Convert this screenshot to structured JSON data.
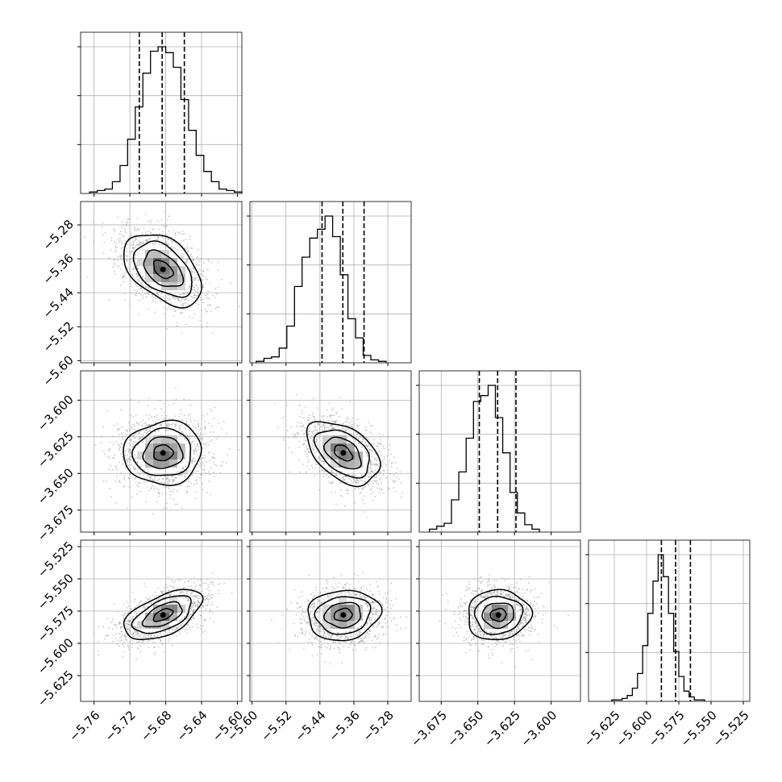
{
  "chart_data": {
    "type": "corner",
    "grid": true,
    "quantile_lines": "dashed",
    "params": [
      {
        "index": 0,
        "range": [
          -5.775,
          -5.595
        ],
        "ticks": [
          -5.76,
          -5.72,
          -5.68,
          -5.64,
          -5.6
        ],
        "tick_labels": [
          "−5.76",
          "−5.72",
          "−5.68",
          "−5.64",
          "−5.60"
        ],
        "quantiles": [
          -5.7095,
          -5.684,
          -5.6592
        ],
        "hist_start": -5.765,
        "hist_bin_width": 0.0085,
        "hist_counts": [
          1,
          2,
          3,
          8,
          19,
          37,
          59,
          82,
          97,
          100,
          96,
          86,
          64,
          43,
          26,
          15,
          8,
          3,
          2,
          1
        ],
        "center": [
          -5.683,
          -5.385,
          -3.636,
          -5.578
        ]
      },
      {
        "index": 1,
        "range": [
          -5.605,
          -5.225
        ],
        "ticks": [
          -5.6,
          -5.52,
          -5.44,
          -5.36,
          -5.28
        ],
        "tick_labels": [
          "−5.60",
          "−5.52",
          "−5.44",
          "−5.36",
          "−5.28"
        ],
        "quantiles": [
          -5.435,
          -5.386,
          -5.336
        ],
        "hist_start": -5.59,
        "hist_bin_width": 0.018,
        "hist_counts": [
          1,
          3,
          4,
          10,
          25,
          52,
          72,
          85,
          91,
          100,
          86,
          60,
          30,
          17,
          5,
          2,
          1
        ]
      },
      {
        "index": 2,
        "range": [
          -3.69,
          -3.58
        ],
        "ticks": [
          -3.675,
          -3.65,
          -3.625,
          -3.6
        ],
        "tick_labels": [
          "−3.675",
          "−3.650",
          "−3.625",
          "−3.600"
        ],
        "quantiles": [
          -3.649,
          -3.6365,
          -3.624
        ],
        "hist_start": -3.683,
        "hist_bin_width": 0.005,
        "hist_counts": [
          2,
          4,
          6,
          22,
          41,
          64,
          89,
          93,
          100,
          78,
          54,
          27,
          13,
          5,
          2
        ]
      },
      {
        "index": 3,
        "range": [
          -5.645,
          -5.52
        ],
        "ticks": [
          -5.625,
          -5.6,
          -5.575,
          -5.55,
          -5.525
        ],
        "tick_labels": [
          "−5.625",
          "−5.600",
          "−5.575",
          "−5.550",
          "−5.525"
        ],
        "quantiles": [
          -5.5885,
          -5.5775,
          -5.566
        ],
        "hist_start": -5.627,
        "hist_bin_width": 0.004,
        "hist_counts": [
          1,
          1,
          2,
          4,
          9,
          19,
          38,
          60,
          82,
          100,
          85,
          60,
          34,
          17,
          7,
          3,
          1,
          1
        ]
      }
    ],
    "pair_correlation": {
      "1-0": -0.45,
      "2-0": 0.05,
      "2-1": -0.45,
      "3-0": 0.55,
      "3-1": 0.1,
      "3-2": 0.05
    },
    "sigma_fraction": 0.3,
    "contour_levels_sigma": [
      0.5,
      1.0,
      1.5,
      2.0
    ],
    "colors": {
      "histogram": "#000000",
      "scatter": "#9a9a9a",
      "density": "#000000",
      "contour": "#000000",
      "grid": "#b0b0b0",
      "axes": "#000000"
    }
  }
}
